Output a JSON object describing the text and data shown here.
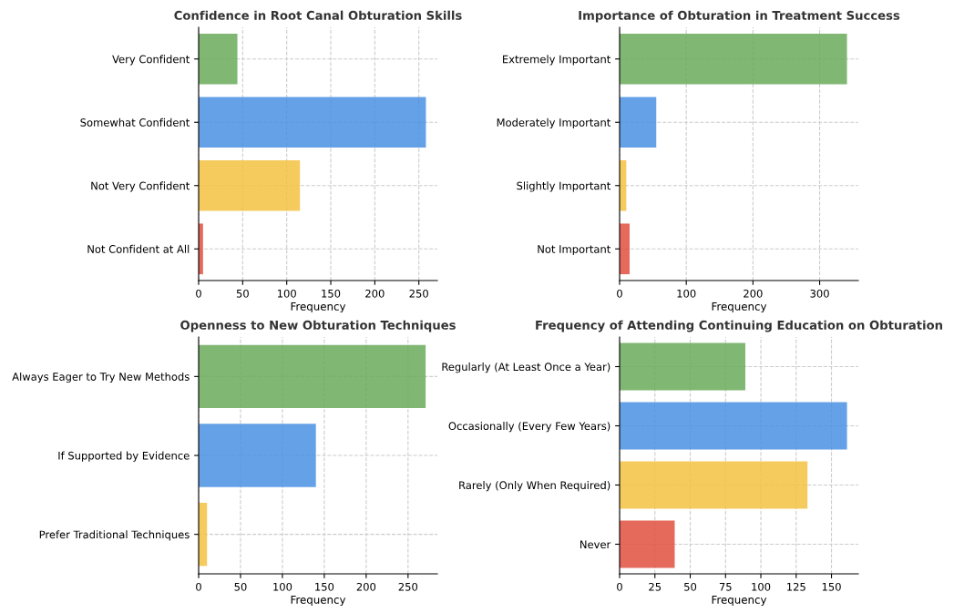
{
  "chart_data": [
    {
      "type": "bar",
      "orientation": "horizontal",
      "title": "Confidence in Root Canal Obturation Skills",
      "xlabel": "Frequency",
      "categories": [
        "Very Confident",
        "Somewhat Confident",
        "Not Very Confident",
        "Not Confident at All"
      ],
      "values": [
        44,
        258,
        115,
        5
      ],
      "colors": [
        "#6aaa5a",
        "#4a90e2",
        "#f4c242",
        "#e05040"
      ],
      "xlim": [
        0,
        271
      ],
      "xticks": [
        0,
        50,
        100,
        150,
        200,
        250
      ],
      "grid": true
    },
    {
      "type": "bar",
      "orientation": "horizontal",
      "title": "Importance of Obturation in Treatment Success",
      "xlabel": "Frequency",
      "categories": [
        "Extremely Important",
        "Moderately Important",
        "Slightly Important",
        "Not Important"
      ],
      "values": [
        341,
        55,
        10,
        15
      ],
      "colors": [
        "#6aaa5a",
        "#4a90e2",
        "#f4c242",
        "#e05040"
      ],
      "xlim": [
        0,
        358
      ],
      "xticks": [
        0,
        100,
        200,
        300
      ],
      "grid": true
    },
    {
      "type": "bar",
      "orientation": "horizontal",
      "title": "Openness to New Obturation Techniques",
      "xlabel": "Frequency",
      "categories": [
        "Always Eager to Try New Methods",
        "If Supported by Evidence",
        "Prefer Traditional Techniques"
      ],
      "values": [
        271,
        140,
        10
      ],
      "colors": [
        "#6aaa5a",
        "#4a90e2",
        "#f4c242"
      ],
      "xlim": [
        0,
        285
      ],
      "xticks": [
        0,
        50,
        100,
        150,
        200,
        250
      ],
      "grid": true
    },
    {
      "type": "bar",
      "orientation": "horizontal",
      "title": "Frequency of Attending Continuing Education on Obturation",
      "xlabel": "Frequency",
      "categories": [
        "Regularly (At Least Once a Year)",
        "Occasionally (Every Few Years)",
        "Rarely (Only When Required)",
        "Never"
      ],
      "values": [
        89,
        161,
        133,
        39
      ],
      "colors": [
        "#6aaa5a",
        "#4a90e2",
        "#f4c242",
        "#e05040"
      ],
      "xlim": [
        0,
        169
      ],
      "xticks": [
        0,
        25,
        50,
        75,
        100,
        125,
        150
      ],
      "grid": true
    }
  ]
}
